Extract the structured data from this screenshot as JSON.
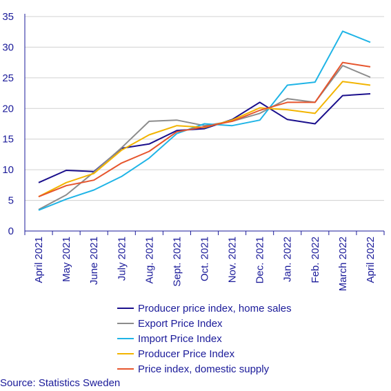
{
  "chart_data": {
    "type": "line",
    "categories": [
      "April 2021",
      "May 2021",
      "June 2021",
      "July 2021",
      "Aug. 2021",
      "Sept. 2021",
      "Oct. 2021",
      "Nov. 2021",
      "Dec. 2021",
      "Jan. 2022",
      "Feb. 2022",
      "March 2022",
      "April 2022"
    ],
    "ylim": [
      0,
      35
    ],
    "yticks": [
      0,
      5,
      10,
      15,
      20,
      25,
      30,
      35
    ],
    "grid": true,
    "legend_position": "bottom",
    "series": [
      {
        "name": "Producer price index, home sales",
        "color": "#1a0f8c",
        "values": [
          7.9,
          9.9,
          9.7,
          13.5,
          14.2,
          16.4,
          16.7,
          18.2,
          21.0,
          18.2,
          17.5,
          22.1,
          22.4
        ]
      },
      {
        "name": "Export Price Index",
        "color": "#8c8c8c",
        "values": [
          3.5,
          5.9,
          9.6,
          13.6,
          17.9,
          18.1,
          17.2,
          17.9,
          19.2,
          21.6,
          21.0,
          27.0,
          25.1
        ]
      },
      {
        "name": "Import Price Index",
        "color": "#1fb4e6",
        "values": [
          3.4,
          5.2,
          6.7,
          8.9,
          11.9,
          15.9,
          17.5,
          17.2,
          18.1,
          23.8,
          24.3,
          32.6,
          30.8
        ]
      },
      {
        "name": "Producer Price Index",
        "color": "#f2b400",
        "values": [
          5.6,
          7.9,
          9.4,
          13.2,
          15.7,
          17.2,
          16.9,
          18.1,
          20.1,
          19.8,
          19.2,
          24.4,
          23.8
        ]
      },
      {
        "name": "Price index, domestic supply",
        "color": "#e6552d",
        "values": [
          5.6,
          7.4,
          8.3,
          11.1,
          13.0,
          16.2,
          17.0,
          17.9,
          19.7,
          21.0,
          21.0,
          27.5,
          26.8
        ]
      }
    ]
  },
  "source": "Source: Statistics Sweden"
}
